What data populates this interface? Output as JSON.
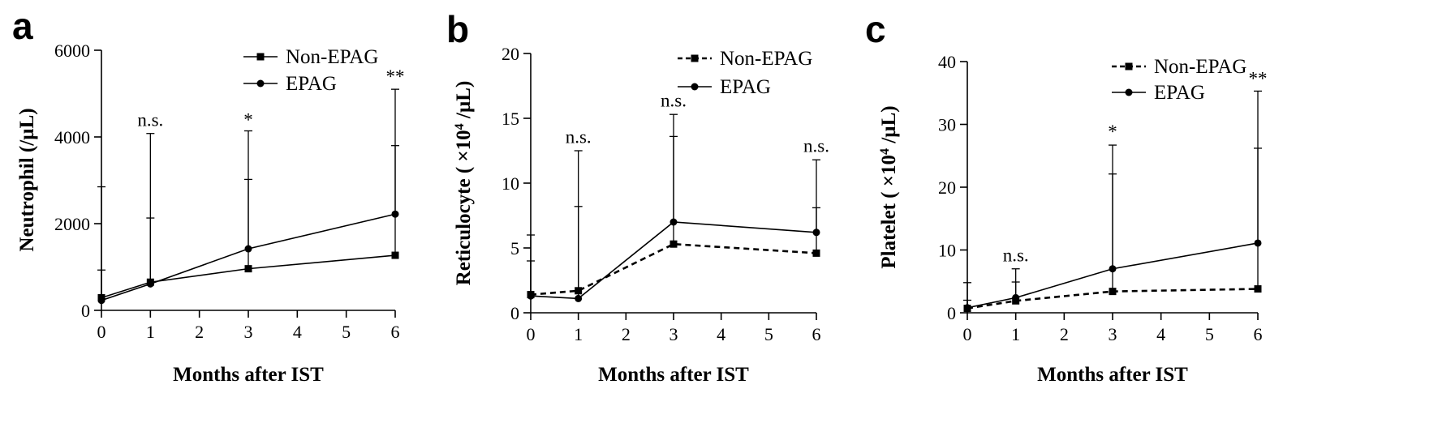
{
  "chart_data": [
    {
      "type": "line",
      "panel": "a",
      "xlabel": "Months after  IST",
      "ylabel": "Neutrophil (/µL)",
      "ylabel_sup": "",
      "ylabel_post": "",
      "x": [
        0,
        1,
        3,
        6
      ],
      "xticks": [
        0,
        1,
        2,
        3,
        4,
        5,
        6
      ],
      "yticks": [
        0,
        2000,
        4000,
        6000
      ],
      "xlim": [
        0,
        6
      ],
      "ylim": [
        0,
        6000
      ],
      "series": [
        {
          "name": "Non-EPAG",
          "marker": "square",
          "dash": "solid",
          "values": [
            290,
            650,
            960,
            1270
          ],
          "err_upper": [
            2850,
            2130,
            3020,
            3800
          ]
        },
        {
          "name": "EPAG",
          "marker": "circle",
          "dash": "solid",
          "values": [
            230,
            610,
            1420,
            2220
          ],
          "err_upper": [
            930,
            4080,
            4140,
            5100
          ]
        }
      ],
      "annotations": [
        {
          "x": 1,
          "text": "n.s.",
          "y": 4250
        },
        {
          "x": 3,
          "text": "*",
          "y": 4250
        },
        {
          "x": 6,
          "text": "**",
          "y": 5250
        }
      ],
      "legend": "top-right"
    },
    {
      "type": "line",
      "panel": "b",
      "xlabel": "Months after  IST",
      "ylabel": "Reticulocyte ( ×10",
      "ylabel_sup": "4",
      "ylabel_post": " /µL)",
      "x": [
        0,
        1,
        3,
        6
      ],
      "xticks": [
        0,
        1,
        2,
        3,
        4,
        5,
        6
      ],
      "yticks": [
        0,
        5,
        10,
        15,
        20
      ],
      "xlim": [
        0,
        6
      ],
      "ylim": [
        0,
        20
      ],
      "series": [
        {
          "name": "Non-EPAG",
          "marker": "square",
          "dash": "dashed",
          "values": [
            1.4,
            1.7,
            5.3,
            4.6
          ],
          "err_upper": [
            6.0,
            8.2,
            13.6,
            8.1
          ]
        },
        {
          "name": "EPAG",
          "marker": "circle",
          "dash": "solid",
          "values": [
            1.3,
            1.1,
            7.0,
            6.2
          ],
          "err_upper": [
            4.0,
            12.5,
            15.3,
            11.8
          ]
        }
      ],
      "annotations": [
        {
          "x": 1,
          "text": "n.s.",
          "y": 13.1
        },
        {
          "x": 3,
          "text": "n.s.",
          "y": 15.9
        },
        {
          "x": 6,
          "text": "n.s.",
          "y": 12.4
        }
      ],
      "legend": "top-right"
    },
    {
      "type": "line",
      "panel": "c",
      "xlabel": "Months after  IST",
      "ylabel": "Platelet ( ×10",
      "ylabel_sup": "4",
      "ylabel_post": " /µL)",
      "x": [
        0,
        1,
        3,
        6
      ],
      "xticks": [
        0,
        1,
        2,
        3,
        4,
        5,
        6
      ],
      "yticks": [
        0,
        10,
        20,
        30,
        40
      ],
      "xlim": [
        0,
        6
      ],
      "ylim": [
        0,
        40
      ],
      "series": [
        {
          "name": "Non-EPAG",
          "marker": "square",
          "dash": "dashed",
          "values": [
            0.7,
            1.9,
            3.4,
            3.8
          ],
          "err_upper": [
            2.0,
            4.9,
            22.1,
            26.2
          ]
        },
        {
          "name": "EPAG",
          "marker": "circle",
          "dash": "solid",
          "values": [
            0.8,
            2.4,
            7.0,
            11.1
          ],
          "err_upper": [
            4.8,
            7.0,
            26.7,
            35.3
          ]
        }
      ],
      "annotations": [
        {
          "x": 1,
          "text": "n.s.",
          "y": 8.2
        },
        {
          "x": 3,
          "text": "*",
          "y": 27.9
        },
        {
          "x": 6,
          "text": "**",
          "y": 36.3
        }
      ],
      "legend": "top-right"
    }
  ]
}
